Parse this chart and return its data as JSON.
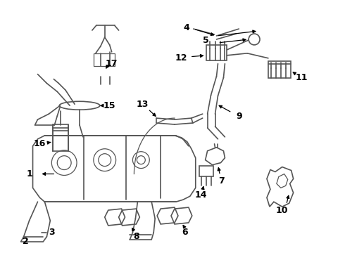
{
  "bg_color": "#ffffff",
  "line_color": "#555555",
  "figsize": [
    4.9,
    3.6
  ],
  "dpi": 100
}
